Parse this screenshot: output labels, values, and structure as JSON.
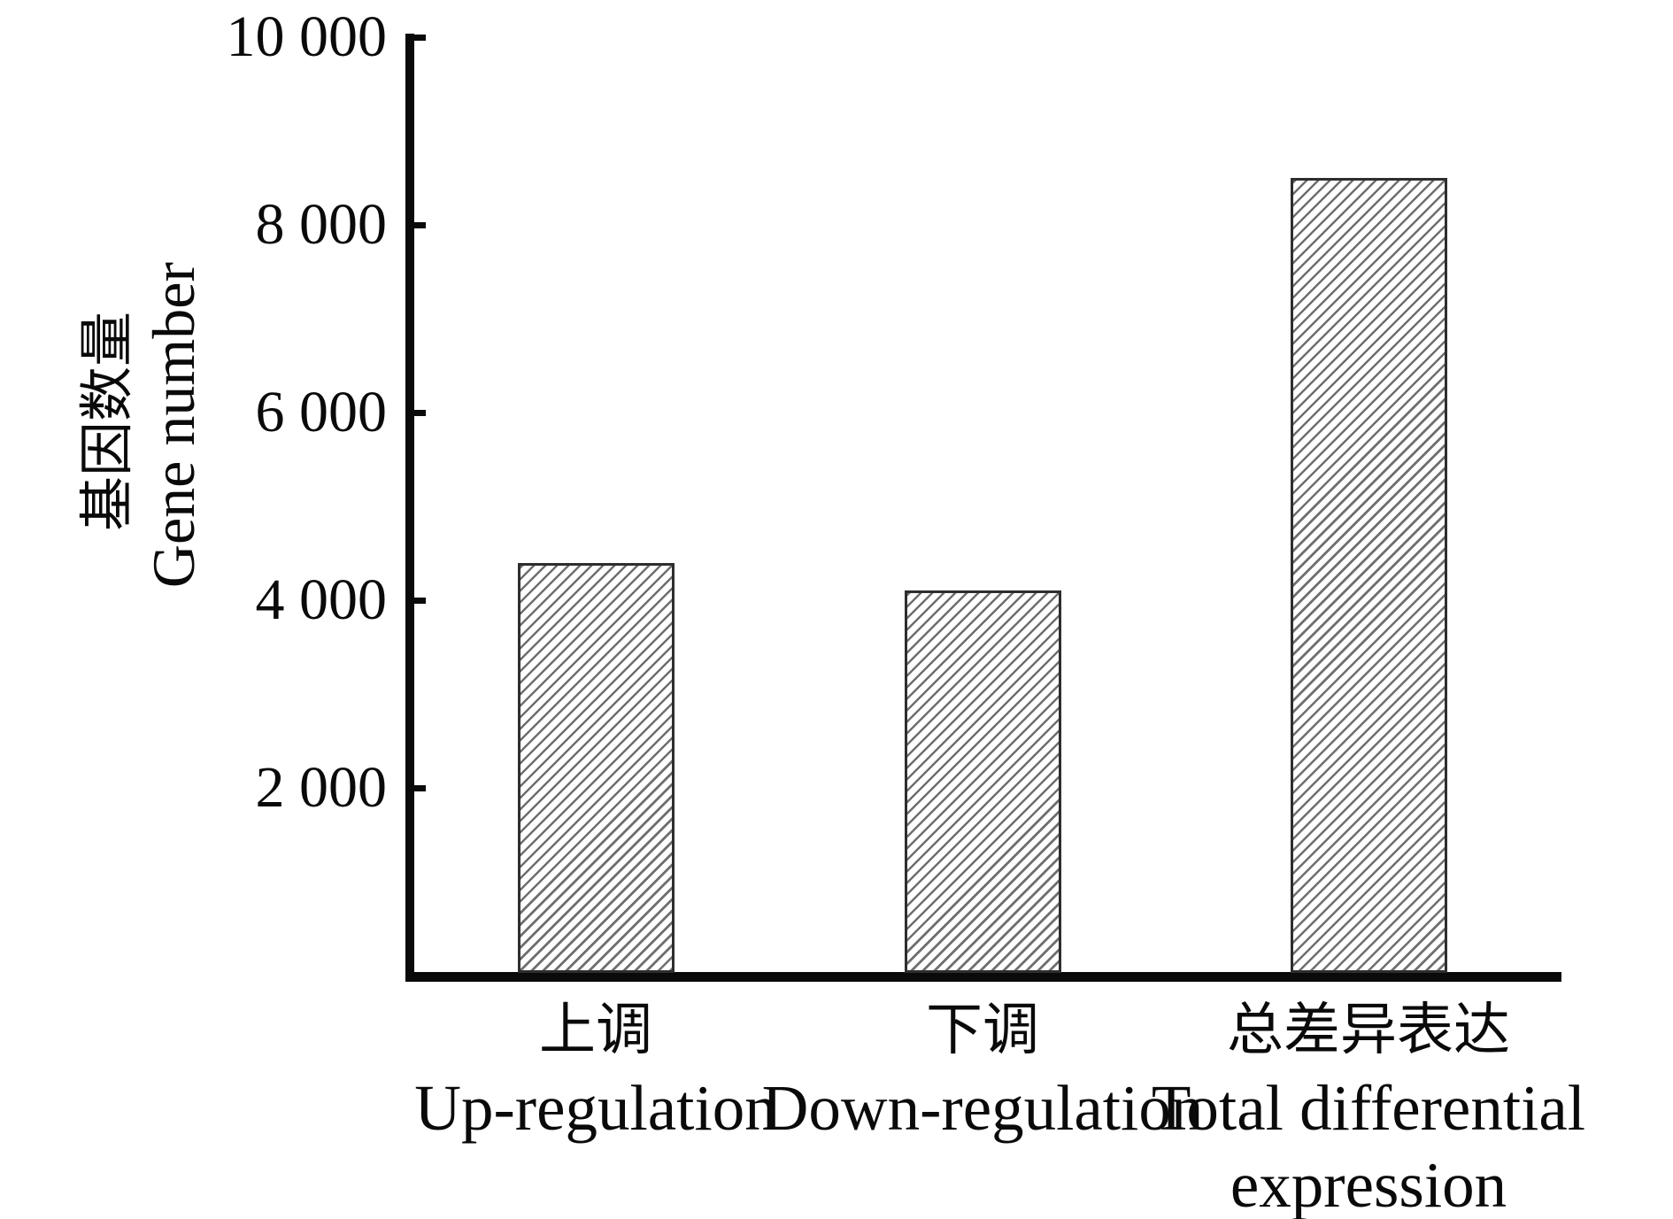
{
  "chart_data": {
    "type": "bar",
    "title": "",
    "categories": [
      {
        "label_cn": "上调",
        "label_en_lines": [
          "Up-regulation"
        ]
      },
      {
        "label_cn": "下调",
        "label_en_lines": [
          "Down-regulation"
        ]
      },
      {
        "label_cn": "总差异表达",
        "label_en_lines": [
          "Total differential",
          "expression"
        ]
      }
    ],
    "values": [
      4400,
      4100,
      8500
    ],
    "ylabel_cn": "基因数量",
    "ylabel_en": "Gene number",
    "ylim": [
      0,
      10000
    ],
    "yticks": [
      {
        "value": 10000,
        "label": "10 000"
      },
      {
        "value": 8000,
        "label": "8 000"
      },
      {
        "value": 6000,
        "label": "6 000"
      },
      {
        "value": 4000,
        "label": "4 000"
      },
      {
        "value": 2000,
        "label": "2 000"
      }
    ],
    "grid": false,
    "legend": "none",
    "bar_style": {
      "fill": "#ffffff",
      "hatch": "diagonal-45-forward-slash",
      "hatch_color": "#6f6f6f",
      "border_color": "#2e2e2e"
    },
    "colors": {
      "axis": "#0a0a0a",
      "text": "#0a0a0a",
      "background": "#ffffff"
    }
  }
}
